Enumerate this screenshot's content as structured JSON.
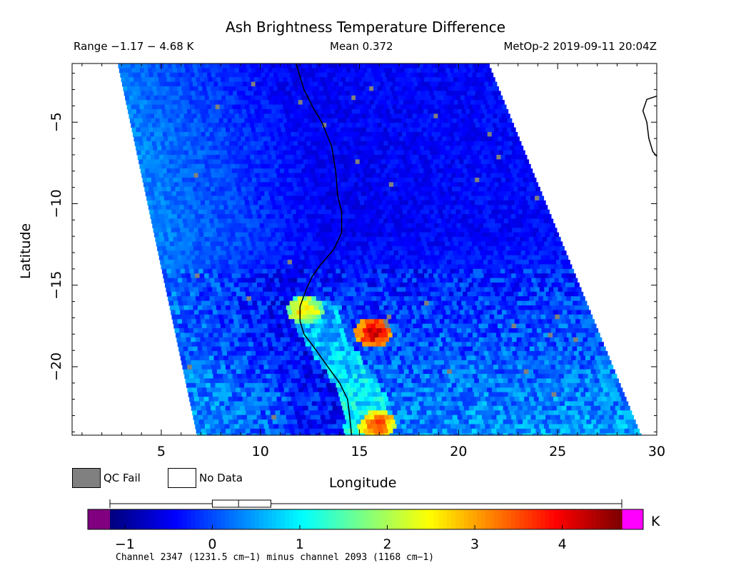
{
  "header": {
    "title": "Ash Brightness Temperature Difference",
    "range": "Range −1.17 − 4.68 K",
    "mean": "Mean 0.372",
    "satellite_time": "MetOp-2 2019-09-11 20:04Z"
  },
  "legend": {
    "qc_fail": "QC Fail",
    "no_data": "No Data",
    "qc_fail_color": "#808080",
    "no_data_color": "#ffffff"
  },
  "colorbar": {
    "units": "K",
    "ticks": [
      "−1",
      "0",
      "1",
      "2",
      "3",
      "4"
    ],
    "tick_values": [
      -1,
      0,
      1,
      2,
      3,
      4
    ],
    "min": -1.17,
    "max": 4.68,
    "box_low": 0,
    "box_median": 0.3,
    "box_high": 0.67,
    "under_color": "#800080",
    "over_color": "#ff00ff",
    "caption": "Channel 2347 (1231.5 cm−1) minus channel 2093 (1168 cm−1)"
  },
  "chart_data": {
    "type": "heatmap",
    "title": "Ash Brightness Temperature Difference",
    "xlabel": "Longitude",
    "ylabel": "Latitude",
    "xlim": [
      0.5,
      30
    ],
    "ylim": [
      -24.2,
      -1.4
    ],
    "x_ticks": [
      5,
      10,
      15,
      20,
      25,
      30
    ],
    "x_tick_labels": [
      "5",
      "10",
      "15",
      "20",
      "25",
      "30"
    ],
    "y_ticks": [
      -5,
      -10,
      -15,
      -20
    ],
    "y_tick_labels": [
      "−5",
      "−10",
      "−15",
      "−20"
    ],
    "value_range": [
      -1.17,
      4.68
    ],
    "mean": 0.372,
    "swath_corners": {
      "top_left": [
        2.8,
        -1.4
      ],
      "top_right": [
        21.5,
        -1.4
      ],
      "bottom_right": [
        29.2,
        -24.2
      ],
      "bottom_left": [
        6.8,
        -24.2
      ]
    },
    "hotspots": [
      {
        "lon": 15.7,
        "lat": -17.9,
        "value": 4.4
      },
      {
        "lon": 15.9,
        "lat": -23.6,
        "value": 3.8
      },
      {
        "lon": 12.3,
        "lat": -16.5,
        "value": 3.0
      }
    ],
    "grid": false
  }
}
